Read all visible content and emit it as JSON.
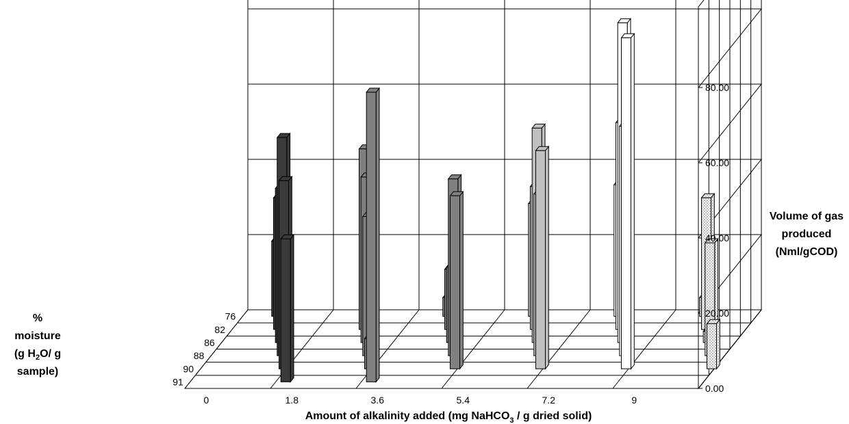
{
  "chart_data": {
    "type": "bar",
    "subtype": "3d-clustered-bar",
    "categories": [
      "0",
      "1.8",
      "3.6",
      "5.4",
      "7.2",
      "9"
    ],
    "depth_categories": [
      "76",
      "82",
      "86",
      "88",
      "90",
      "91"
    ],
    "zlim": [
      0,
      80
    ],
    "z_ticks": [
      "0.00",
      "20.00",
      "40.00",
      "60.00",
      "80.00"
    ],
    "xlabel": {
      "pre": "Amount of alkalinity added  (mg NaHCO",
      "sub": "3",
      "post": "  / g dried solid)"
    },
    "zlabel_lines": [
      "Volume of gas",
      "produced",
      "(Nml/gCOD)"
    ],
    "ylabel_lines": [
      "%",
      "moisture",
      "(g H2O/ g",
      "sample)"
    ],
    "ylabel_sub": {
      "pre": "(g H",
      "sub": "2",
      "post": "O/ g"
    },
    "grid": true,
    "series": [
      {
        "category": "0",
        "fill": "#3a3a3a",
        "pattern": "solid",
        "values": [
          {
            "depth": "76",
            "value": 20
          },
          {
            "depth": "82",
            "value": 35
          },
          {
            "depth": "86",
            "value": 41
          },
          {
            "depth": "88",
            "value": 58
          },
          {
            "depth": "90",
            "value": 50
          },
          {
            "depth": "91",
            "value": 38
          }
        ]
      },
      {
        "category": "1.8",
        "fill": "#808080",
        "pattern": "solid",
        "values": [
          {
            "depth": "82",
            "value": 48
          },
          {
            "depth": "86",
            "value": 44
          },
          {
            "depth": "88",
            "value": 37
          },
          {
            "depth": "90",
            "value": 8
          },
          {
            "depth": "91",
            "value": 77
          }
        ]
      },
      {
        "category": "3.6",
        "fill": "#808080",
        "pattern": "solid",
        "values": [
          {
            "depth": "76",
            "value": 5
          },
          {
            "depth": "82",
            "value": 16
          },
          {
            "depth": "86",
            "value": 20
          },
          {
            "depth": "88",
            "value": 47
          },
          {
            "depth": "90",
            "value": 46
          }
        ]
      },
      {
        "category": "5.4",
        "fill": "#c0c0c0",
        "pattern": "solid",
        "values": [
          {
            "depth": "76",
            "value": 30
          },
          {
            "depth": "82",
            "value": 38
          },
          {
            "depth": "86",
            "value": 57
          },
          {
            "depth": "88",
            "value": 43
          },
          {
            "depth": "90",
            "value": 58
          }
        ]
      },
      {
        "category": "7.2",
        "fill": "#ffffff",
        "pattern": "solid",
        "values": [
          {
            "depth": "76",
            "value": 35
          },
          {
            "depth": "82",
            "value": 55
          },
          {
            "depth": "86",
            "value": 85
          },
          {
            "depth": "88",
            "value": 61
          },
          {
            "depth": "90",
            "value": 88
          }
        ]
      },
      {
        "category": "9",
        "fill": "#eeeeee",
        "pattern": "dotted",
        "values": [
          {
            "depth": "76",
            "value": 5
          },
          {
            "depth": "82",
            "value": 35
          },
          {
            "depth": "86",
            "value": 3
          },
          {
            "depth": "88",
            "value": 30
          },
          {
            "depth": "90",
            "value": 12
          }
        ]
      }
    ]
  }
}
